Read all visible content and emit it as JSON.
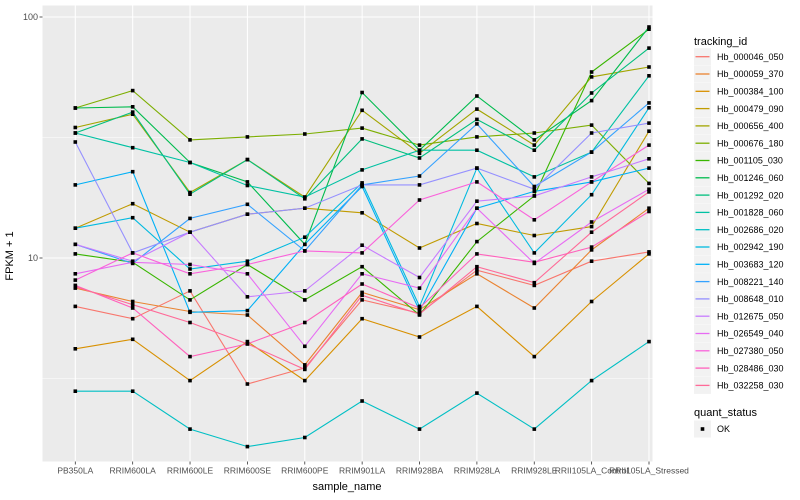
{
  "figure": {
    "bg": "#FFFFFF",
    "panel_bg": "#EBEBEB",
    "grid_color": "#FFFFFF",
    "tick_color": "#333333",
    "axis_text_color": "#4D4D4D",
    "title_color": "#000000",
    "legend_key_bg": "#F2F2F2",
    "point_color": "#000000"
  },
  "y_axis": {
    "title": "FPKM + 1",
    "scale": "log10",
    "tick_labels": [
      "100",
      "10"
    ],
    "tick_values": [
      100,
      10
    ]
  },
  "x_axis": {
    "title": "sample_name"
  },
  "legend": {
    "title": "tracking_id",
    "quant_title": "quant_status",
    "quant_items": [
      {
        "label": "OK",
        "shape": "filled-square",
        "color": "#000000"
      }
    ]
  },
  "chart_data": {
    "type": "line",
    "yscale": "log10",
    "ylim": [
      1.4,
      110
    ],
    "xlabel": "sample_name",
    "ylabel": "FPKM + 1",
    "grid": true,
    "legend_position": "right",
    "point_shape": "filled-square",
    "x_categories": [
      "PB350LA",
      "RRIM600LA",
      "RRIM600LE",
      "RRIM600SE",
      "RRIM600PE",
      "RRIM901LA",
      "RRIM928BA",
      "RRIM928LA",
      "RRIM928LE",
      "RRII105LA_Control",
      "RRII105LA_Stressed"
    ],
    "series": [
      {
        "name": "Hb_000046_050",
        "color": "#F8766D",
        "values": [
          6.3,
          5.6,
          7.3,
          3.0,
          3.5,
          6.7,
          5.9,
          8.9,
          7.7,
          9.7,
          10.6
        ]
      },
      {
        "name": "Hb_000059_370",
        "color": "#EA8331",
        "values": [
          7.5,
          6.6,
          6.0,
          5.8,
          3.6,
          7.2,
          6.1,
          8.6,
          6.2,
          10.8,
          16.1
        ]
      },
      {
        "name": "Hb_000384_100",
        "color": "#D89000",
        "values": [
          4.2,
          4.6,
          3.1,
          4.5,
          3.1,
          5.6,
          4.7,
          6.3,
          3.9,
          6.6,
          10.4
        ]
      },
      {
        "name": "Hb_000479_090",
        "color": "#C09B00",
        "values": [
          13.3,
          16.8,
          12.8,
          15.2,
          16.1,
          15.4,
          11.0,
          13.9,
          12.4,
          13.5,
          33.6
        ]
      },
      {
        "name": "Hb_000656_400",
        "color": "#A3A500",
        "values": [
          34.8,
          39.5,
          18.7,
          25.6,
          17.9,
          41.0,
          27.2,
          41.5,
          29.4,
          56.4,
          62.0
        ]
      },
      {
        "name": "Hb_000676_180",
        "color": "#7CAE00",
        "values": [
          41.9,
          49.5,
          30.9,
          31.8,
          32.7,
          34.6,
          29.4,
          31.8,
          33.0,
          35.6,
          20.4
        ]
      },
      {
        "name": "Hb_001105_030",
        "color": "#39B600",
        "values": [
          10.4,
          9.6,
          6.7,
          9.4,
          6.7,
          9.2,
          5.8,
          11.7,
          18.1,
          59.1,
          89.0
        ]
      },
      {
        "name": "Hb_001246_060",
        "color": "#00BB4E",
        "values": [
          41.9,
          42.4,
          24.9,
          20.7,
          11.4,
          48.6,
          28.0,
          47.0,
          30.9,
          45.0,
          90.9
        ]
      },
      {
        "name": "Hb_001292_020",
        "color": "#00BF7D",
        "values": [
          33.0,
          40.3,
          18.4,
          25.6,
          17.6,
          31.2,
          26.0,
          37.6,
          28.0,
          48.4,
          74.3
        ]
      },
      {
        "name": "Hb_001828_060",
        "color": "#00C1A3",
        "values": [
          33.0,
          28.7,
          24.9,
          20.0,
          17.9,
          23.2,
          28.0,
          28.0,
          21.7,
          27.5,
          57.0
        ]
      },
      {
        "name": "Hb_002686_020",
        "color": "#00BFC4",
        "values": [
          2.8,
          2.8,
          1.95,
          1.65,
          1.8,
          2.55,
          1.95,
          2.75,
          1.95,
          3.1,
          4.5
        ]
      },
      {
        "name": "Hb_002942_190",
        "color": "#00BAE0",
        "values": [
          13.3,
          14.7,
          9.0,
          9.7,
          12.2,
          20.5,
          6.3,
          23.6,
          10.5,
          18.3,
          42.0
        ]
      },
      {
        "name": "Hb_003683_120",
        "color": "#00B0F6",
        "values": [
          20.1,
          22.8,
          5.95,
          6.05,
          11.4,
          19.8,
          6.05,
          16.1,
          18.9,
          20.7,
          23.6
        ]
      },
      {
        "name": "Hb_008221_140",
        "color": "#35A2FF",
        "values": [
          11.4,
          9.5,
          14.6,
          16.7,
          10.7,
          20.1,
          21.9,
          36.0,
          19.8,
          27.5,
          44.0
        ]
      },
      {
        "name": "Hb_008648_010",
        "color": "#9590FF",
        "values": [
          30.3,
          10.5,
          12.8,
          15.2,
          16.1,
          20.1,
          20.1,
          23.6,
          19.3,
          33.0,
          36.3
        ]
      },
      {
        "name": "Hb_012675_050",
        "color": "#C77CFF",
        "values": [
          11.4,
          9.7,
          12.8,
          6.9,
          7.3,
          11.3,
          8.3,
          17.2,
          18.1,
          21.7,
          25.8
        ]
      },
      {
        "name": "Hb_026549_040",
        "color": "#E76BF3",
        "values": [
          8.6,
          9.6,
          9.4,
          8.6,
          4.3,
          8.6,
          7.5,
          16.1,
          9.5,
          14.1,
          19.3
        ]
      },
      {
        "name": "Hb_027380_050",
        "color": "#FA62DB",
        "values": [
          8.1,
          10.5,
          8.6,
          9.4,
          10.7,
          10.5,
          17.4,
          20.7,
          14.4,
          20.7,
          29.4
        ]
      },
      {
        "name": "Hb_028486_030",
        "color": "#FF62BC",
        "values": [
          7.7,
          6.2,
          3.9,
          4.4,
          5.4,
          7.8,
          6.2,
          10.4,
          9.6,
          11.1,
          15.6
        ]
      },
      {
        "name": "Hb_032258_030",
        "color": "#FF6A98",
        "values": [
          7.6,
          6.4,
          5.4,
          4.4,
          3.45,
          7.0,
          5.85,
          9.2,
          7.9,
          12.8,
          18.8
        ]
      }
    ]
  }
}
